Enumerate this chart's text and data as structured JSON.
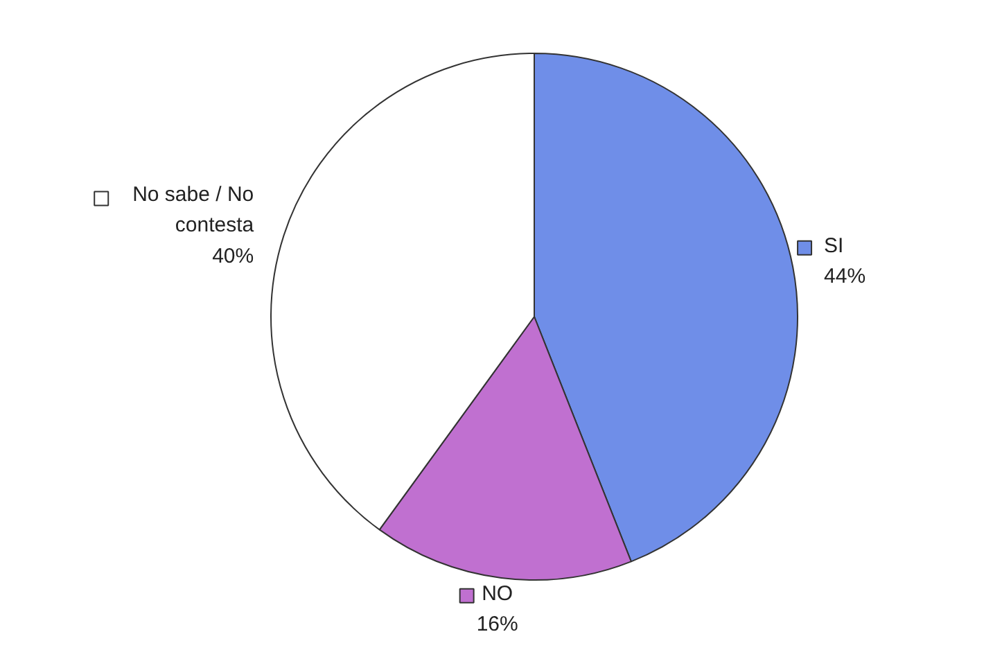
{
  "chart_data": {
    "type": "pie",
    "categories": [
      "SI",
      "NO",
      "No sabe / No\ncontesta"
    ],
    "values": [
      44,
      16,
      40
    ],
    "colors": [
      "#6f8ee8",
      "#c070d0",
      "#ffffff"
    ],
    "value_labels": [
      "44%",
      "16%",
      "40%"
    ],
    "legend": "bottom left"
  }
}
